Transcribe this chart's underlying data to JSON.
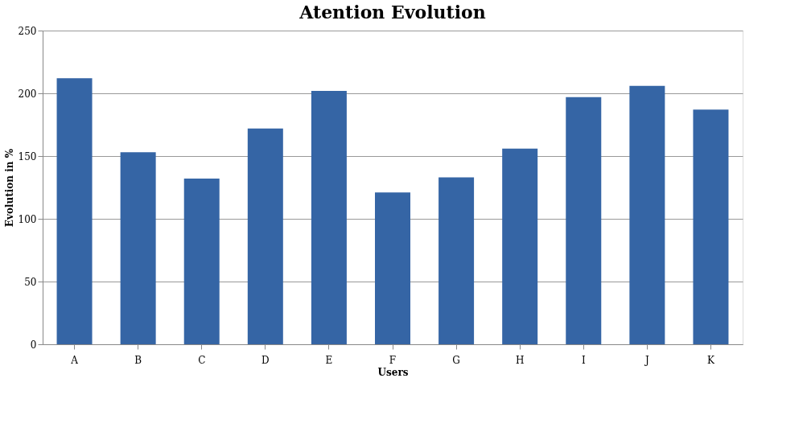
{
  "chart_data": {
    "type": "bar",
    "title": "Atention Evolution",
    "xlabel": "Users",
    "ylabel": "Evolution in %",
    "categories": [
      "A",
      "B",
      "C",
      "D",
      "E",
      "F",
      "G",
      "H",
      "I",
      "J",
      "K"
    ],
    "values": [
      212,
      153,
      132,
      172,
      202,
      121,
      133,
      156,
      197,
      206,
      187
    ],
    "color": "#3565a5",
    "ylim": [
      0,
      250
    ],
    "yticks": [
      0,
      50,
      100,
      150,
      200,
      250
    ],
    "grid": "y"
  }
}
